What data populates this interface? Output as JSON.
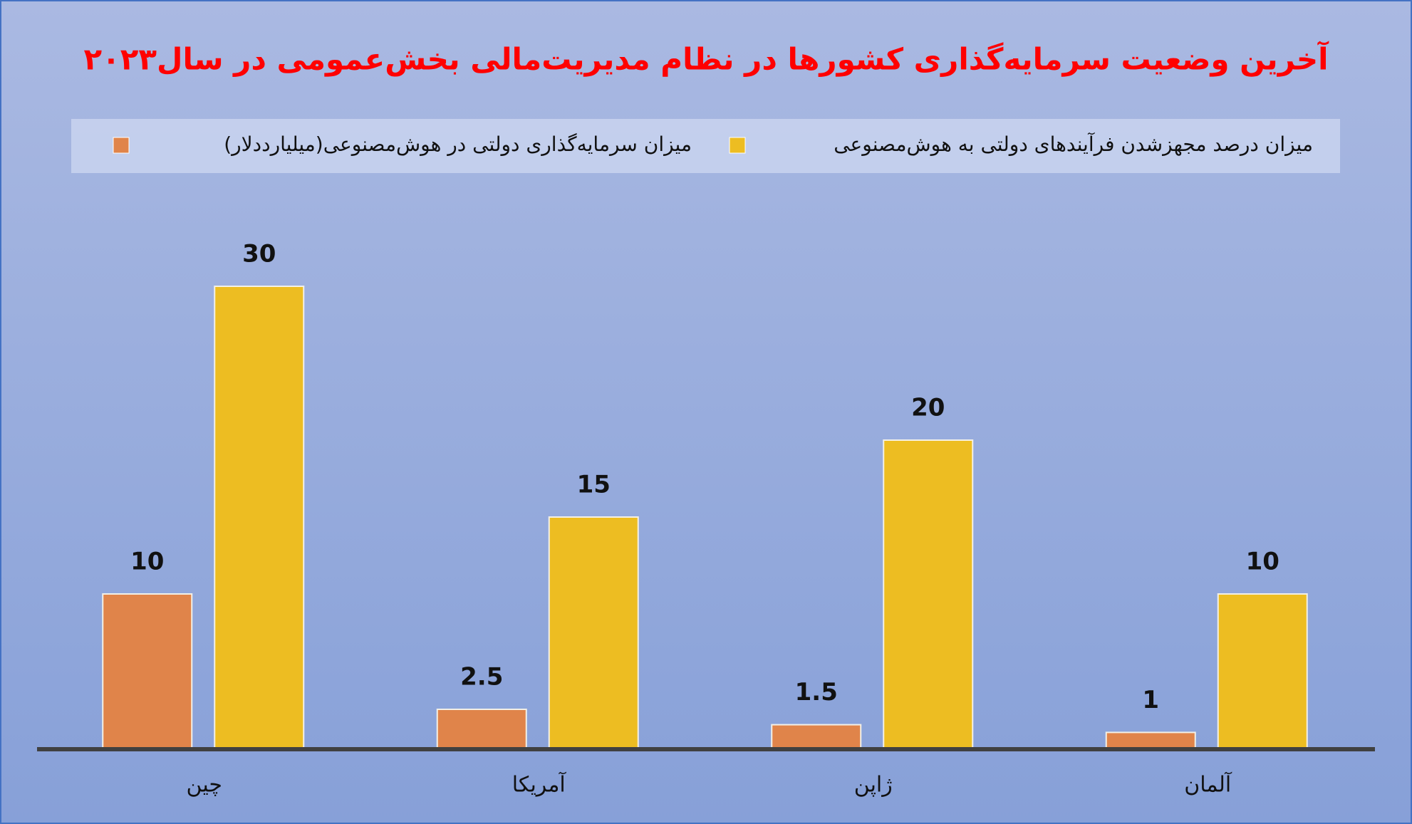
{
  "chart_data": {
    "type": "bar",
    "title": "آخرین وضعیت سرمایه‌گذاری کشورها در نظام مدیریت‌مالی بخش‌عمومی در سال۲۰۲۳",
    "categories": [
      "چین",
      "آمریکا",
      "ژاپن",
      "آلمان"
    ],
    "series": [
      {
        "name": "میزان سرمایه‌گذاری دولتی در هوش‌مصنوعی(میلیارددلار)",
        "color": "#e0844a",
        "values": [
          10,
          2.5,
          1.5,
          1
        ]
      },
      {
        "name": "میزان درصد مجهزشدن فرآیندهای دولتی به هوش‌مصنوعی",
        "color": "#edbd22",
        "values": [
          30,
          15,
          20,
          10
        ]
      }
    ],
    "legend": "top"
  }
}
